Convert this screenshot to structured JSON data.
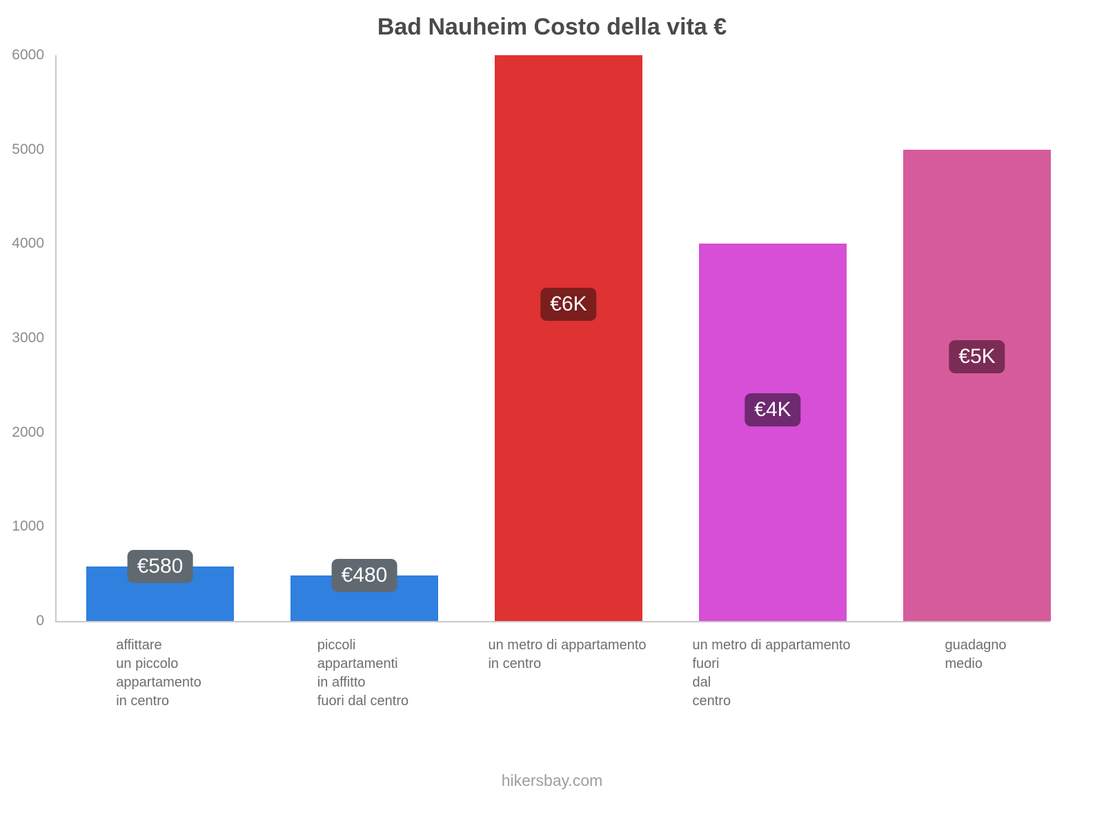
{
  "title": "Bad Nauheim Costo della vita €",
  "footer": "hikersbay.com",
  "chart_data": {
    "type": "bar",
    "title": "Bad Nauheim Costo della vita €",
    "xlabel": "",
    "ylabel": "",
    "ylim": [
      0,
      6000
    ],
    "yticks": [
      0,
      1000,
      2000,
      3000,
      4000,
      5000,
      6000
    ],
    "grid": false,
    "legend": false,
    "currency": "EUR",
    "categories": [
      "affittare un piccolo appartamento in centro",
      "piccoli appartamenti in affitto fuori dal centro",
      "un metro di appartamento in centro",
      "un metro di appartamento fuori dal centro",
      "guadagno medio"
    ],
    "values": [
      580,
      480,
      6000,
      4000,
      5000
    ],
    "bars": [
      {
        "label_lines": [
          "affittare",
          "un piccolo",
          "appartamento",
          "in centro"
        ],
        "value": 580,
        "value_label": "€580",
        "bar_color": "#2f80df",
        "badge_color": "#60696f"
      },
      {
        "label_lines": [
          "piccoli",
          "appartamenti",
          "in affitto",
          "fuori dal centro"
        ],
        "value": 480,
        "value_label": "€480",
        "bar_color": "#2f80df",
        "badge_color": "#60696f"
      },
      {
        "label_lines": [
          "un metro di appartamento",
          "in centro"
        ],
        "value": 6000,
        "value_label": "€6K",
        "bar_color": "#df3232",
        "badge_color": "#7a1e1e"
      },
      {
        "label_lines": [
          "un metro di appartamento",
          "fuori",
          "dal",
          "centro"
        ],
        "value": 4000,
        "value_label": "€4K",
        "bar_color": "#d64fd6",
        "badge_color": "#6e2970"
      },
      {
        "label_lines": [
          "guadagno",
          "medio"
        ],
        "value": 5000,
        "value_label": "€5K",
        "bar_color": "#d65b9c",
        "badge_color": "#7b2c55"
      }
    ]
  }
}
